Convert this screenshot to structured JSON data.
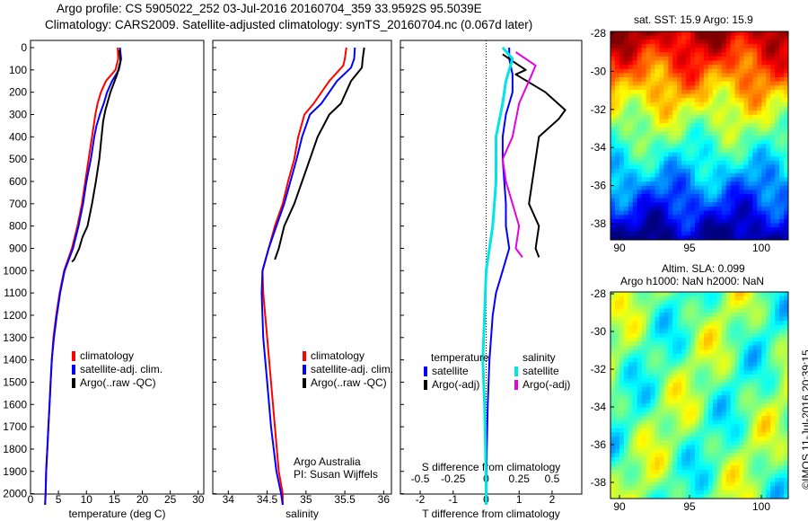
{
  "header": {
    "line1": "Argo profile: CS 5905022_252 03-Jul-2016 20160704_359 33.9592S 95.5039E",
    "line2": "Climatology: CARS2009. Satellite-adjusted climatology: synTS_20160704.nc (0.067d later)"
  },
  "colors": {
    "climatology": "#ff0000",
    "satellite": "#0000ff",
    "argo": "#000000",
    "satellite_salinity": "#00e5e5",
    "argo_salinity_adj": "#e600e6"
  },
  "credits": {
    "line1": "Argo Australia",
    "line2": "PI: Susan Wijffels"
  },
  "watermark": "©IMOS 11-Jul-2016 20:39:15",
  "maps": {
    "sst": {
      "title": "sat. SST: 15.9 Argo: 15.9",
      "colormap": "jet"
    },
    "sla": {
      "title1": "Altim. SLA: 0.099",
      "title2": "Argo h1000: NaN h2000: NaN",
      "colormap": "jet"
    },
    "lat_ticks": [
      "-28",
      "-30",
      "-32",
      "-34",
      "-36",
      "-38"
    ],
    "lon_ticks": [
      "90",
      "95",
      "100"
    ]
  },
  "chart_data": [
    {
      "type": "line",
      "name": "temperature",
      "xlabel": "temperature (deg C)",
      "ylabel": "",
      "xlim": [
        0,
        31
      ],
      "ylim": [
        0,
        2050
      ],
      "y_reversed": true,
      "xticks": [
        0,
        5,
        10,
        15,
        20,
        25,
        30
      ],
      "yticks": [
        0,
        100,
        200,
        300,
        400,
        500,
        600,
        700,
        800,
        900,
        1000,
        1100,
        1200,
        1300,
        1400,
        1500,
        1600,
        1700,
        1800,
        1900,
        2000
      ],
      "legend": [
        "climatology",
        "satellite-adj. clim.",
        "Argo(..raw -QC)"
      ],
      "series": [
        {
          "name": "climatology",
          "color": "#ff0000",
          "points": [
            [
              15.6,
              0
            ],
            [
              15.7,
              50
            ],
            [
              15.2,
              100
            ],
            [
              13.5,
              150
            ],
            [
              12.6,
              200
            ],
            [
              12.0,
              250
            ],
            [
              11.6,
              300
            ],
            [
              11.3,
              350
            ],
            [
              11.0,
              400
            ],
            [
              10.4,
              500
            ],
            [
              9.8,
              600
            ],
            [
              9.2,
              700
            ],
            [
              8.4,
              800
            ],
            [
              7.4,
              900
            ],
            [
              6.0,
              1000
            ],
            [
              5.2,
              1100
            ],
            [
              4.6,
              1200
            ],
            [
              4.1,
              1300
            ],
            [
              3.8,
              1400
            ],
            [
              3.6,
              1500
            ],
            [
              3.4,
              1600
            ],
            [
              3.2,
              1700
            ],
            [
              3.0,
              1800
            ],
            [
              2.8,
              1900
            ],
            [
              2.7,
              2000
            ],
            [
              2.6,
              2050
            ]
          ]
        },
        {
          "name": "satellite-adj. clim.",
          "color": "#0000ff",
          "points": [
            [
              16.0,
              0
            ],
            [
              16.2,
              50
            ],
            [
              15.8,
              100
            ],
            [
              14.6,
              150
            ],
            [
              13.7,
              200
            ],
            [
              13.1,
              250
            ],
            [
              12.4,
              300
            ],
            [
              11.8,
              350
            ],
            [
              11.4,
              400
            ],
            [
              10.8,
              500
            ],
            [
              10.0,
              600
            ],
            [
              9.4,
              700
            ],
            [
              8.6,
              800
            ],
            [
              7.6,
              900
            ],
            [
              6.1,
              1000
            ],
            [
              5.3,
              1100
            ],
            [
              4.7,
              1200
            ],
            [
              4.2,
              1300
            ],
            [
              3.8,
              1400
            ],
            [
              3.6,
              1500
            ],
            [
              3.4,
              1600
            ],
            [
              3.2,
              1700
            ],
            [
              3.0,
              1800
            ],
            [
              2.8,
              1900
            ],
            [
              2.7,
              2000
            ],
            [
              2.6,
              2050
            ]
          ]
        },
        {
          "name": "Argo(..raw -QC)",
          "color": "#000000",
          "points": [
            [
              15.9,
              10
            ],
            [
              16.1,
              60
            ],
            [
              15.5,
              120
            ],
            [
              14.3,
              200
            ],
            [
              13.4,
              280
            ],
            [
              13.0,
              330
            ],
            [
              12.7,
              400
            ],
            [
              12.3,
              500
            ],
            [
              11.7,
              600
            ],
            [
              11.0,
              700
            ],
            [
              10.2,
              800
            ],
            [
              9.3,
              850
            ],
            [
              8.7,
              900
            ],
            [
              7.8,
              950
            ],
            [
              7.4,
              960
            ]
          ]
        }
      ]
    },
    {
      "type": "line",
      "name": "salinity",
      "xlabel": "salinity",
      "ylabel": "",
      "xlim": [
        33.8,
        36.1
      ],
      "ylim": [
        0,
        2050
      ],
      "y_reversed": true,
      "xticks": [
        34,
        34.5,
        35,
        35.5,
        36
      ],
      "legend": [
        "climatology",
        "satellite-adj. clim.",
        "Argo(..raw -QC)"
      ],
      "series": [
        {
          "name": "climatology",
          "color": "#ff0000",
          "points": [
            [
              35.52,
              0
            ],
            [
              35.5,
              50
            ],
            [
              35.48,
              80
            ],
            [
              35.3,
              150
            ],
            [
              35.1,
              250
            ],
            [
              34.98,
              300
            ],
            [
              34.9,
              400
            ],
            [
              34.85,
              500
            ],
            [
              34.77,
              600
            ],
            [
              34.7,
              700
            ],
            [
              34.6,
              800
            ],
            [
              34.52,
              900
            ],
            [
              34.44,
              1000
            ],
            [
              34.45,
              1100
            ],
            [
              34.5,
              1300
            ],
            [
              34.55,
              1500
            ],
            [
              34.6,
              1700
            ],
            [
              34.65,
              1900
            ],
            [
              34.7,
              2000
            ],
            [
              34.7,
              2050
            ]
          ]
        },
        {
          "name": "satellite-adj. clim.",
          "color": "#0000ff",
          "points": [
            [
              35.63,
              0
            ],
            [
              35.62,
              50
            ],
            [
              35.58,
              90
            ],
            [
              35.4,
              150
            ],
            [
              35.2,
              250
            ],
            [
              35.05,
              300
            ],
            [
              34.95,
              400
            ],
            [
              34.88,
              500
            ],
            [
              34.8,
              600
            ],
            [
              34.72,
              700
            ],
            [
              34.62,
              800
            ],
            [
              34.52,
              900
            ],
            [
              34.44,
              1000
            ],
            [
              34.43,
              1100
            ],
            [
              34.45,
              1300
            ],
            [
              34.5,
              1500
            ],
            [
              34.55,
              1700
            ],
            [
              34.62,
              1900
            ],
            [
              34.68,
              2000
            ],
            [
              34.7,
              2050
            ]
          ]
        },
        {
          "name": "Argo(..raw -QC)",
          "color": "#000000",
          "points": [
            [
              35.75,
              0
            ],
            [
              35.73,
              50
            ],
            [
              35.72,
              90
            ],
            [
              35.58,
              150
            ],
            [
              35.45,
              250
            ],
            [
              35.3,
              300
            ],
            [
              35.15,
              400
            ],
            [
              35.05,
              500
            ],
            [
              34.95,
              600
            ],
            [
              34.85,
              700
            ],
            [
              34.72,
              800
            ],
            [
              34.65,
              900
            ],
            [
              34.6,
              950
            ]
          ]
        }
      ]
    },
    {
      "type": "line",
      "name": "difference",
      "xlabel": "T difference from climatology",
      "xlabel_top": "S difference from climatology",
      "xlim": [
        -2.6,
        2.9
      ],
      "ylim": [
        0,
        2050
      ],
      "y_reversed": true,
      "xticks": [
        -2,
        -1,
        0,
        1,
        2
      ],
      "xticks_top": [
        "-0.5",
        "-0.25",
        "0",
        "0.25",
        "0.5"
      ],
      "legend_headers": [
        "temperature",
        "salinity"
      ],
      "legend": [
        "satellite",
        "Argo(-adj)",
        "satellite",
        "Argo(-adj)"
      ],
      "series": [
        {
          "name": "temperature satellite",
          "color": "#0000ff",
          "points": [
            [
              0.7,
              0
            ],
            [
              0.7,
              50
            ],
            [
              0.8,
              120
            ],
            [
              0.8,
              200
            ],
            [
              0.6,
              300
            ],
            [
              0.5,
              400
            ],
            [
              0.5,
              500
            ],
            [
              0.6,
              700
            ],
            [
              0.6,
              800
            ],
            [
              0.7,
              900
            ],
            [
              0.5,
              1000
            ],
            [
              0.3,
              1100
            ],
            [
              0.2,
              1200
            ],
            [
              0.1,
              1400
            ],
            [
              0.05,
              1600
            ],
            [
              0.02,
              1800
            ],
            [
              0.0,
              2000
            ],
            [
              0.0,
              2050
            ]
          ]
        },
        {
          "name": "temperature Argo(-adj)",
          "color": "#000000",
          "points": [
            [
              0.5,
              30
            ],
            [
              1.0,
              80
            ],
            [
              1.2,
              100
            ],
            [
              0.9,
              120
            ],
            [
              1.8,
              200
            ],
            [
              2.4,
              280
            ],
            [
              2.2,
              320
            ],
            [
              1.6,
              400
            ],
            [
              1.5,
              500
            ],
            [
              1.4,
              600
            ],
            [
              1.3,
              700
            ],
            [
              1.6,
              800
            ],
            [
              1.5,
              900
            ],
            [
              1.6,
              940
            ]
          ]
        },
        {
          "name": "salinity satellite",
          "color": "#00e5e5",
          "points": [
            [
              0.5,
              0
            ],
            [
              0.8,
              50
            ],
            [
              0.6,
              150
            ],
            [
              0.5,
              250
            ],
            [
              0.3,
              400
            ],
            [
              0.3,
              600
            ],
            [
              0.2,
              800
            ],
            [
              0.1,
              900
            ],
            [
              0.0,
              1000
            ],
            [
              -0.05,
              1200
            ],
            [
              -0.1,
              1400
            ],
            [
              -0.05,
              1600
            ],
            [
              -0.02,
              1800
            ],
            [
              0.0,
              2000
            ],
            [
              0.0,
              2050
            ]
          ]
        },
        {
          "name": "salinity Argo(-adj)",
          "color": "#e600e6",
          "points": [
            [
              0.9,
              20
            ],
            [
              1.5,
              80
            ],
            [
              1.3,
              150
            ],
            [
              1.0,
              250
            ],
            [
              0.8,
              400
            ],
            [
              0.5,
              500
            ],
            [
              0.6,
              600
            ],
            [
              0.8,
              700
            ],
            [
              1.0,
              800
            ],
            [
              0.9,
              900
            ],
            [
              1.1,
              940
            ]
          ]
        }
      ]
    }
  ]
}
